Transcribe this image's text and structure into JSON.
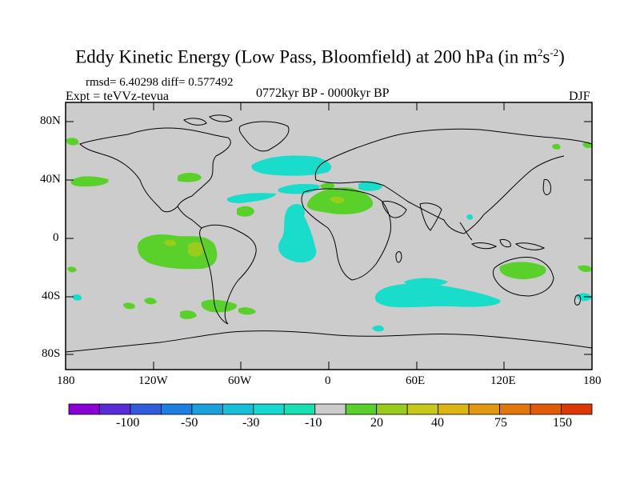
{
  "title": {
    "main": "Eddy Kinetic Energy (Low Pass, Bloomfield) at 200 hPa (in m",
    "sup1": "2",
    "mid": "s",
    "sup2": "-2",
    "close": ")"
  },
  "stats": "rmsd= 6.40298 diff= 0.577492",
  "experiment": "Expt = teVVz-tevua",
  "period": "0772kyr BP - 0000kyr BP",
  "season": "DJF",
  "axes": {
    "lat_labels": [
      "80N",
      "40N",
      "0",
      "40S",
      "80S"
    ],
    "lon_labels": [
      "180",
      "120W",
      "60W",
      "0",
      "60E",
      "120E",
      "180"
    ]
  },
  "colorbar": {
    "labels": [
      "-100",
      "-50",
      "-30",
      "-10",
      "20",
      "40",
      "75",
      "150"
    ],
    "colors": [
      "#8a00d4",
      "#5a2bd8",
      "#2f5bdc",
      "#1e7fe0",
      "#1aa0dd",
      "#17bfd8",
      "#15d8d2",
      "#19e0b0",
      "#cccccc",
      "#5ad12a",
      "#9acc1b",
      "#c8c81a",
      "#dcb414",
      "#e29810",
      "#e2780c",
      "#e05a08",
      "#dd3805"
    ]
  },
  "colors": {
    "land_ocean": "#cccccc",
    "cyan_neg": "#19dccb",
    "green_pos": "#5ad12a",
    "lime_pos": "#9acc1b"
  }
}
